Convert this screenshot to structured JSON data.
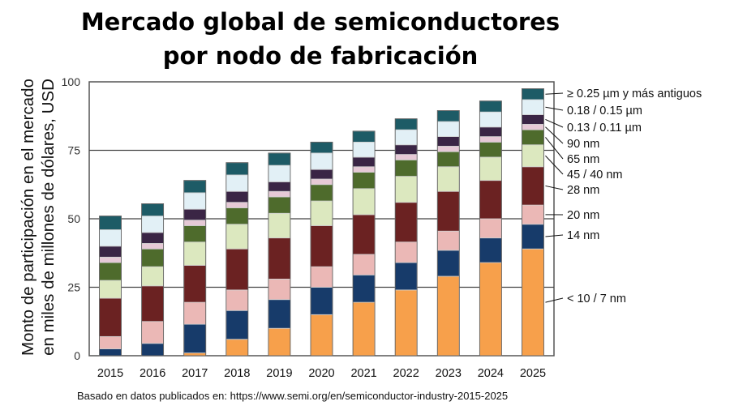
{
  "title": {
    "line1": "Mercado global de semiconductores",
    "line2": "por nodo de fabricación"
  },
  "ylabel": {
    "line1": "Monto de participación en el mercado",
    "line2": "en miles de millones de dólares, USD"
  },
  "source": "Basado en datos publicados en: https://www.semi.org/en/semiconductor-industry-2015-2025",
  "chart_data": {
    "type": "bar",
    "stacked": true,
    "title": "Mercado global de semiconductores por nodo de fabricación",
    "xlabel": "",
    "ylabel": "Monto de participación en el mercado en miles de millones de dólares, USD",
    "ylim": [
      0,
      100
    ],
    "yticks": [
      0,
      25,
      50,
      75,
      100
    ],
    "grid": "horizontal lines at 25, 50, 75",
    "legend": "right, labels aligned to segments of the 2025 bar",
    "categories": [
      "2015",
      "2016",
      "2017",
      "2018",
      "2019",
      "2020",
      "2021",
      "2022",
      "2023",
      "2024",
      "2025"
    ],
    "series": [
      {
        "name": "< 10 / 7 nm",
        "color": "#f7a04b",
        "values": [
          0,
          0,
          1,
          6,
          10,
          15,
          19.5,
          24,
          29,
          34,
          39
        ]
      },
      {
        "name": "14 nm",
        "color": "#173b6a",
        "values": [
          2.5,
          4.5,
          10.5,
          10.5,
          10.5,
          10,
          10,
          10,
          9.5,
          9,
          9
        ]
      },
      {
        "name": "20 nm",
        "color": "#ebb8b6",
        "values": [
          4.5,
          8,
          8,
          7.5,
          7.5,
          7.5,
          7.5,
          7.5,
          7,
          7,
          7
        ]
      },
      {
        "name": "28 nm",
        "color": "#6b2222",
        "values": [
          14,
          13,
          13.5,
          15,
          15,
          15,
          14.5,
          14.5,
          14.5,
          14,
          14
        ]
      },
      {
        "name": "45 / 40 nm",
        "color": "#dce8bf",
        "values": [
          6.5,
          7,
          8.5,
          9,
          9,
          9,
          9.5,
          9.5,
          9,
          8.5,
          8
        ]
      },
      {
        "name": "65 nm",
        "color": "#4e6b2c",
        "values": [
          6.5,
          6.5,
          6,
          6,
          6,
          6,
          6,
          6,
          5.5,
          5.5,
          5.5
        ]
      },
      {
        "name": "90 nm",
        "color": "#e6c9d6",
        "values": [
          2,
          2,
          2,
          2,
          2,
          2,
          2,
          2,
          2,
          2,
          2
        ]
      },
      {
        "name": "0.13 / 0.11 µm",
        "color": "#3a2545",
        "values": [
          4,
          4,
          4,
          4,
          3.5,
          3.5,
          3.5,
          3.5,
          3.5,
          3.5,
          3.5
        ]
      },
      {
        "name": "0.18 / 0.15 µm",
        "color": "#e2f0f6",
        "values": [
          6,
          6,
          6,
          6,
          6,
          6,
          5.5,
          5.5,
          5.5,
          5.5,
          5.5
        ]
      },
      {
        "name": "≥ 0.25 µm y más antiguos",
        "color": "#1d5b66",
        "values": [
          5,
          4.5,
          4.5,
          4.5,
          4.5,
          4,
          4,
          4,
          4,
          4,
          4
        ]
      }
    ]
  }
}
